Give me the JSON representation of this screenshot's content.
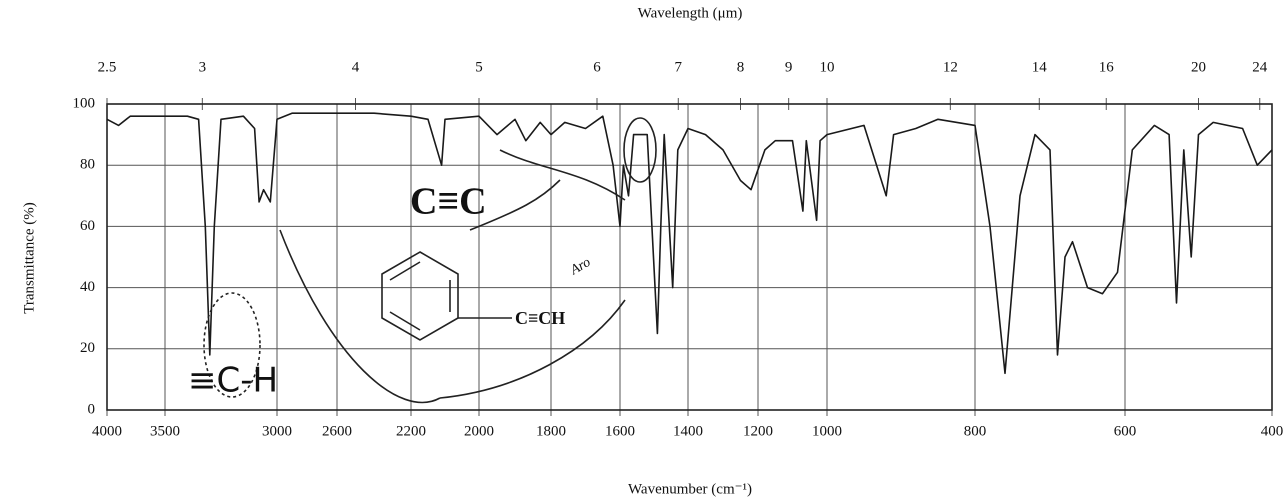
{
  "chart_data": {
    "type": "line",
    "title": "Wavelength (μm)",
    "x_label": "Wavenumber (cm⁻¹)",
    "y_label": "Transmittance (%)",
    "color": "#1a1a1a",
    "grid": true,
    "xlim": [
      4000,
      400
    ],
    "xticks": [
      4000,
      3500,
      3000,
      2600,
      2200,
      2000,
      1800,
      1600,
      1400,
      1200,
      1000,
      800,
      600,
      400
    ],
    "x2ticks": [
      2.5,
      3,
      4,
      5,
      6,
      7,
      8,
      9,
      10,
      12,
      14,
      16,
      20,
      24
    ],
    "ylim": [
      0,
      100
    ],
    "yticks": [
      0,
      20,
      40,
      60,
      80,
      100
    ],
    "x": [
      4000,
      3900,
      3800,
      3600,
      3400,
      3350,
      3320,
      3300,
      3280,
      3250,
      3150,
      3100,
      3080,
      3060,
      3030,
      3000,
      2900,
      2600,
      2400,
      2200,
      2150,
      2110,
      2100,
      2000,
      1950,
      1900,
      1870,
      1830,
      1800,
      1760,
      1700,
      1650,
      1620,
      1600,
      1590,
      1575,
      1560,
      1520,
      1490,
      1480,
      1470,
      1445,
      1430,
      1400,
      1350,
      1300,
      1250,
      1220,
      1180,
      1150,
      1100,
      1070,
      1060,
      1030,
      1020,
      1000,
      950,
      920,
      910,
      880,
      850,
      800,
      780,
      760,
      740,
      720,
      700,
      690,
      680,
      670,
      650,
      630,
      610,
      590,
      560,
      540,
      530,
      520,
      510,
      500,
      480,
      440,
      420,
      400
    ],
    "values": [
      95,
      93,
      96,
      96,
      96,
      95,
      60,
      18,
      60,
      95,
      96,
      92,
      68,
      72,
      68,
      95,
      97,
      97,
      97,
      96,
      95,
      80,
      95,
      96,
      90,
      95,
      88,
      94,
      90,
      94,
      92,
      96,
      80,
      60,
      80,
      70,
      90,
      90,
      25,
      60,
      90,
      40,
      85,
      92,
      90,
      85,
      75,
      72,
      85,
      88,
      88,
      65,
      88,
      62,
      88,
      90,
      93,
      70,
      90,
      92,
      95,
      93,
      60,
      12,
      70,
      90,
      85,
      18,
      50,
      55,
      40,
      38,
      45,
      85,
      93,
      90,
      35,
      85,
      50,
      90,
      94,
      92,
      80,
      85
    ],
    "annotations": [
      "≡C-H",
      "C≡C",
      "C≡CH",
      "Aro"
    ]
  }
}
